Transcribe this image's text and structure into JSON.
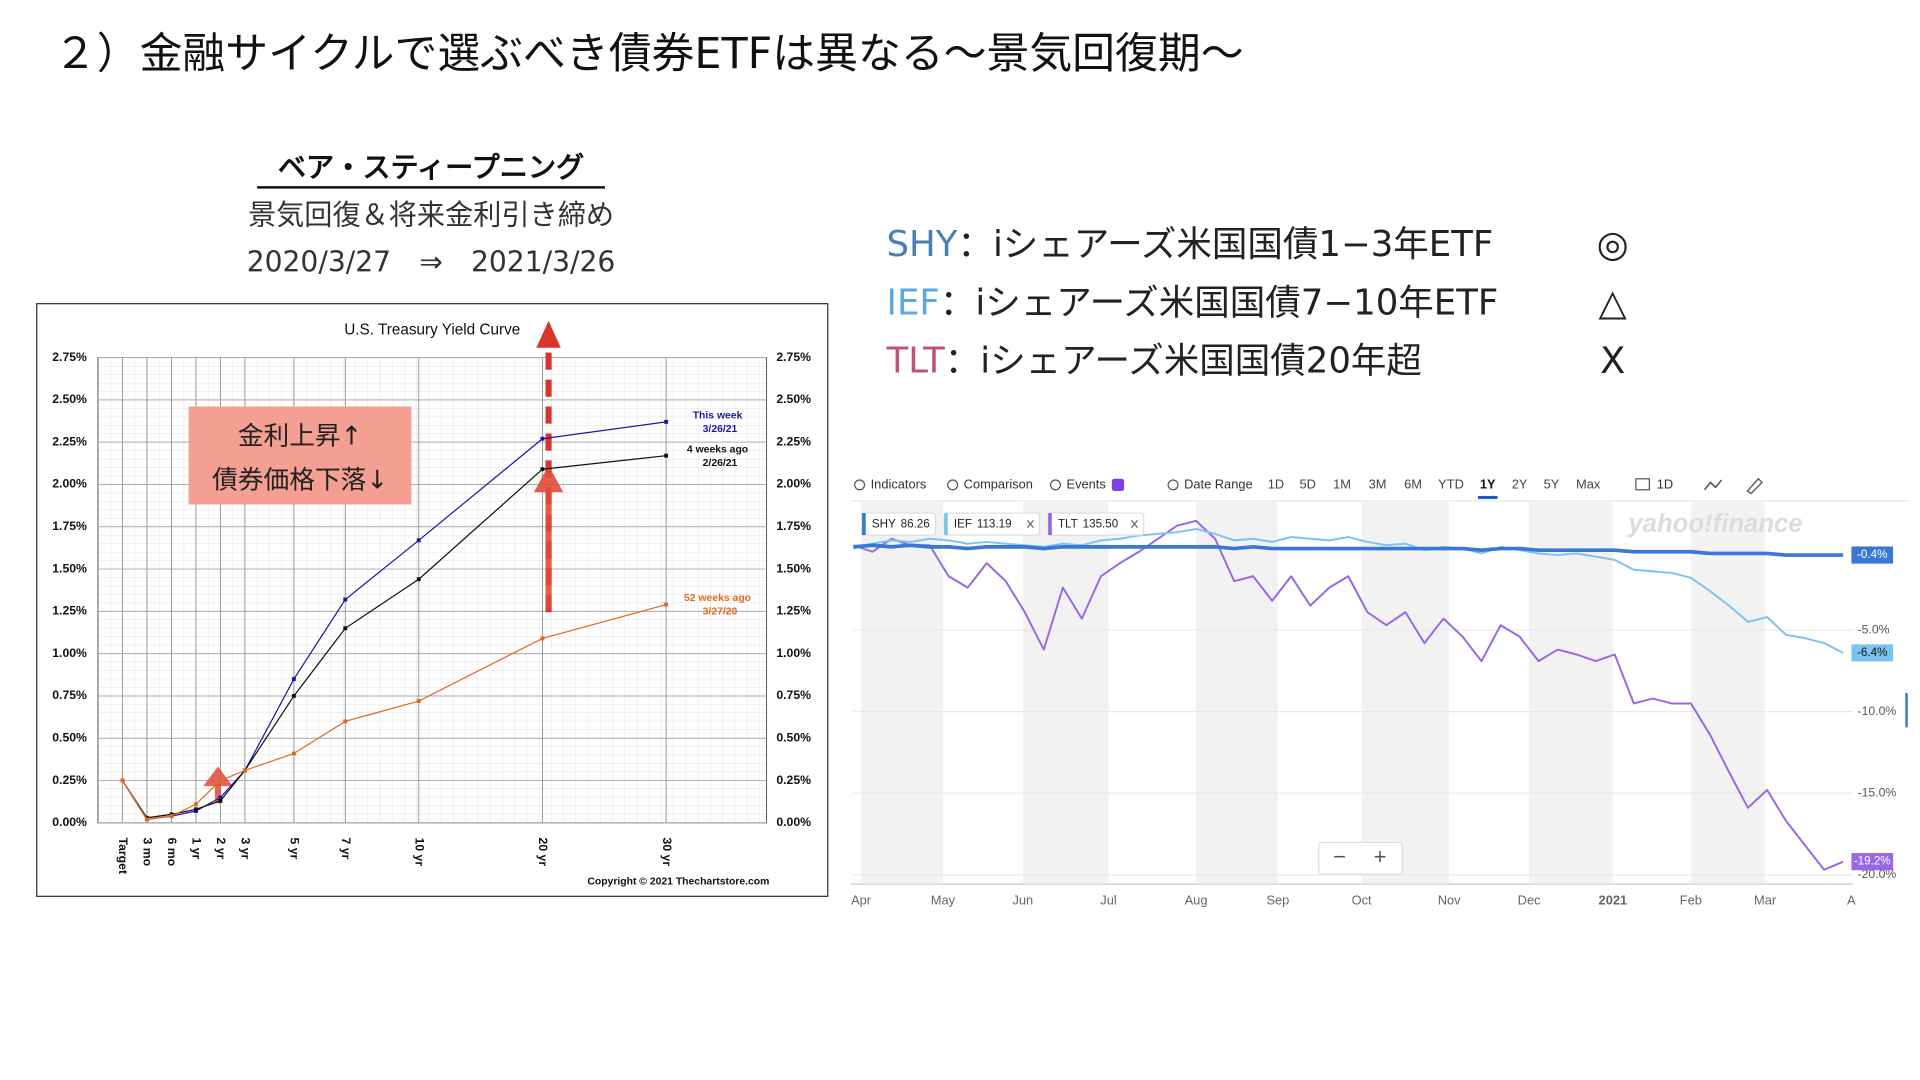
{
  "title": "２）金融サイクルで選ぶべき債券ETFは異なる〜景気回復期〜",
  "left_heading": {
    "title": "ベア・スティープニング",
    "subtitle": "景気回復＆将来金利引き締め",
    "period": "2020/3/27　⇒　2021/3/26"
  },
  "annotation": [
    "金利上昇↑",
    "債券価格下落↓"
  ],
  "etf_list": [
    {
      "ticker": "SHY",
      "desc": "：iシェアーズ米国国債1−3年ETF",
      "mark": "◎",
      "color": "#4a7fb5"
    },
    {
      "ticker": "IEF",
      "desc": "：iシェアーズ米国国債7−10年ETF",
      "mark": "△",
      "color": "#5aa9dc"
    },
    {
      "ticker": "TLT",
      "desc": "：iシェアーズ米国国債20年超",
      "mark": "X",
      "color": "#c0507a"
    }
  ],
  "chart_data": [
    {
      "type": "line",
      "title": "U.S. Treasury Yield Curve",
      "copyright": "Copyright © 2021 Thechartstore.com",
      "categories": [
        "Target",
        "3 mo",
        "6 mo",
        "1 yr",
        "2 yr",
        "3 yr",
        "5 yr",
        "7 yr",
        "10 yr",
        "20 yr",
        "30 yr"
      ],
      "ylim": [
        0,
        2.75
      ],
      "yticks": [
        {
          "value": 0,
          "label": "0.00%"
        },
        {
          "value": 0.25,
          "label": "0.25%"
        },
        {
          "value": 0.5,
          "label": "0.50%"
        },
        {
          "value": 0.75,
          "label": "0.75%"
        },
        {
          "value": 1,
          "label": "1.00%"
        },
        {
          "value": 1.25,
          "label": "1.25%"
        },
        {
          "value": 1.5,
          "label": "1.50%"
        },
        {
          "value": 1.75,
          "label": "1.75%"
        },
        {
          "value": 2,
          "label": "2.00%"
        },
        {
          "value": 2.25,
          "label": "2.25%"
        },
        {
          "value": 2.5,
          "label": "2.50%"
        },
        {
          "value": 2.75,
          "label": "2.75%"
        }
      ],
      "grid": true,
      "series": [
        {
          "name": "This week",
          "date": "3/26/21",
          "color": "#1a1aa8",
          "values": [
            0.25,
            0.02,
            0.04,
            0.07,
            0.15,
            0.31,
            0.85,
            1.32,
            1.67,
            2.27,
            2.37
          ]
        },
        {
          "name": "4 weeks ago",
          "date": "2/26/21",
          "color": "#111111",
          "values": [
            0.25,
            0.03,
            0.05,
            0.08,
            0.13,
            0.31,
            0.75,
            1.15,
            1.44,
            2.09,
            2.17
          ]
        },
        {
          "name": "52 weeks ago",
          "date": "3/27/20",
          "color": "#e06a1e",
          "values": [
            0.25,
            0.02,
            0.04,
            0.11,
            0.25,
            0.31,
            0.41,
            0.6,
            0.72,
            1.09,
            1.29
          ]
        }
      ]
    },
    {
      "type": "line",
      "toolbar": [
        "Indicators",
        "Comparison",
        "Events",
        "Date Range"
      ],
      "ranges": [
        "1D",
        "5D",
        "1M",
        "3M",
        "6M",
        "YTD",
        "1Y",
        "2Y",
        "5Y",
        "Max"
      ],
      "active_range": 6,
      "interval": "1D",
      "logo": "yahoo!finance",
      "zoom": [
        "−",
        "+"
      ],
      "x": [
        0,
        1,
        2,
        3,
        4,
        5,
        6,
        7,
        8,
        9,
        10,
        11,
        12,
        13,
        14,
        15,
        16,
        17,
        18,
        19,
        20,
        21,
        22,
        23,
        24,
        25,
        26,
        27,
        28,
        29,
        30,
        31,
        32,
        33,
        34,
        35,
        36,
        37,
        38,
        39,
        40,
        41,
        42,
        43,
        44,
        45,
        46,
        47,
        48,
        49,
        50,
        51,
        52
      ],
      "xlim": [
        0,
        52.5
      ],
      "xticks": [
        {
          "value": 0.4,
          "label": "Apr"
        },
        {
          "value": 4.7,
          "label": "May"
        },
        {
          "value": 8.9,
          "label": "Jun"
        },
        {
          "value": 13.4,
          "label": "Jul"
        },
        {
          "value": 18.0,
          "label": "Aug"
        },
        {
          "value": 22.3,
          "label": "Sep"
        },
        {
          "value": 26.7,
          "label": "Oct"
        },
        {
          "value": 31.3,
          "label": "Nov"
        },
        {
          "value": 35.5,
          "label": "Dec"
        },
        {
          "value": 39.9,
          "label": "2021"
        },
        {
          "value": 44.0,
          "label": "Feb"
        },
        {
          "value": 47.9,
          "label": "Mar"
        },
        {
          "value": 52.2,
          "label": "A"
        }
      ],
      "ylim": [
        -20.5,
        3
      ],
      "yticks": [
        {
          "value": -5,
          "label": "-5.0%"
        },
        {
          "value": -10,
          "label": "-10.0%"
        },
        {
          "value": -15,
          "label": "-15.0%"
        },
        {
          "value": -20,
          "label": "-20.0%"
        }
      ],
      "grid": true,
      "series": [
        {
          "name": "SHY",
          "price": "86.26",
          "color": "#3a78d8",
          "end_label": "-0.4%",
          "values": [
            0.1,
            0.2,
            0.1,
            0.2,
            0.1,
            0.1,
            0.0,
            0.1,
            0.1,
            0.1,
            0.0,
            0.1,
            0.1,
            0.1,
            0.1,
            0.1,
            0.1,
            0.1,
            0.1,
            0.1,
            0.0,
            0.1,
            0.0,
            0.0,
            0.0,
            0.0,
            0.0,
            0.0,
            0.0,
            0.0,
            0.0,
            0.0,
            0.0,
            -0.1,
            0.0,
            0.0,
            -0.1,
            -0.1,
            -0.1,
            -0.1,
            -0.1,
            -0.2,
            -0.2,
            -0.2,
            -0.2,
            -0.3,
            -0.3,
            -0.3,
            -0.3,
            -0.4,
            -0.4,
            -0.4,
            -0.4
          ]
        },
        {
          "name": "IEF",
          "price": "113.19",
          "color": "#7cc4f0",
          "end_label": "-6.4%",
          "values": [
            0,
            0.3,
            0.5,
            0.4,
            0.6,
            0.5,
            0.3,
            0.4,
            0.3,
            0.2,
            0.1,
            0.3,
            0.2,
            0.5,
            0.6,
            0.8,
            0.9,
            1.0,
            1.2,
            0.9,
            0.5,
            0.6,
            0.4,
            0.7,
            0.6,
            0.5,
            0.7,
            0.4,
            0.2,
            0.3,
            -0.1,
            0.1,
            0.0,
            -0.3,
            0.1,
            -0.1,
            -0.3,
            -0.4,
            -0.3,
            -0.5,
            -0.7,
            -1.3,
            -1.4,
            -1.5,
            -1.8,
            -2.6,
            -3.5,
            -4.5,
            -4.2,
            -5.3,
            -5.5,
            -5.8,
            -6.4
          ]
        },
        {
          "name": "TLT",
          "price": "135.50",
          "color": "#9966e6",
          "end_label": "-19.2%",
          "values": [
            0.2,
            -0.2,
            0.6,
            0.2,
            0.2,
            -1.7,
            -2.4,
            -0.9,
            -2.0,
            -3.9,
            -6.2,
            -2.4,
            -4.3,
            -1.7,
            -0.9,
            -0.2,
            0.6,
            1.4,
            1.7,
            0.6,
            -2.0,
            -1.7,
            -3.2,
            -1.7,
            -3.5,
            -2.4,
            -1.7,
            -3.9,
            -4.7,
            -3.9,
            -5.8,
            -4.3,
            -5.4,
            -6.9,
            -4.7,
            -5.4,
            -6.9,
            -6.2,
            -6.5,
            -6.9,
            -6.5,
            -9.5,
            -9.2,
            -9.5,
            -9.5,
            -11.4,
            -13.7,
            -15.9,
            -14.8,
            -16.7,
            -18.2,
            -19.7,
            -19.2
          ]
        }
      ]
    }
  ]
}
